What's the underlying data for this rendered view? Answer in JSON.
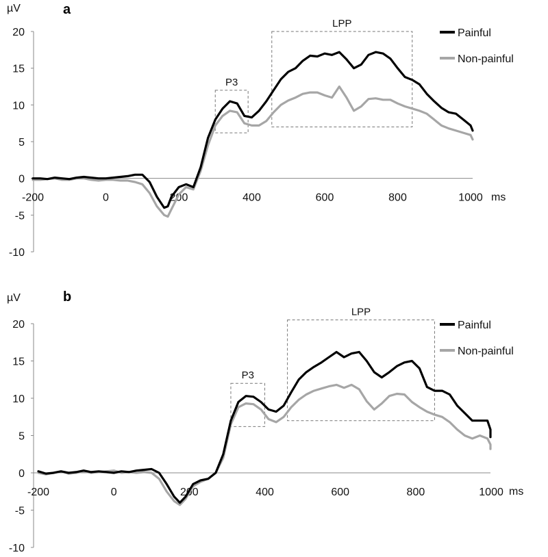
{
  "chart_data": [
    {
      "type": "line",
      "panel_label": "a",
      "ylabel": "µV",
      "xunit": "ms",
      "xlim": [
        -200,
        1000
      ],
      "ylim": [
        -10,
        20
      ],
      "x_ticks": [
        "-200",
        "0",
        "200",
        "400",
        "600",
        "800",
        "1000"
      ],
      "y_ticks": [
        "20",
        "15",
        "10",
        "5",
        "0",
        "-5",
        "-10"
      ],
      "grid": false,
      "legend_position": "top-right",
      "components": [
        {
          "label": "P3",
          "x_range": [
            300,
            390
          ],
          "y_range": [
            6.2,
            12
          ]
        },
        {
          "label": "LPP",
          "x_range": [
            455,
            840
          ],
          "y_range": [
            7,
            20
          ]
        }
      ],
      "series": [
        {
          "name": "Painful",
          "color": "#000000",
          "x": [
            -200,
            -180,
            -160,
            -140,
            -120,
            -100,
            -80,
            -60,
            -40,
            -20,
            0,
            20,
            40,
            60,
            80,
            100,
            120,
            140,
            160,
            170,
            180,
            200,
            220,
            240,
            260,
            280,
            300,
            320,
            340,
            360,
            380,
            400,
            420,
            440,
            460,
            480,
            500,
            520,
            540,
            560,
            580,
            600,
            620,
            640,
            660,
            680,
            700,
            720,
            740,
            760,
            780,
            800,
            820,
            840,
            860,
            880,
            900,
            920,
            940,
            960,
            980,
            1000,
            1020
          ],
          "values": [
            0,
            0,
            -0.1,
            0.1,
            0,
            -0.1,
            0.1,
            0.2,
            0.1,
            0,
            0,
            0.1,
            0.2,
            0.3,
            0.5,
            0.5,
            -0.5,
            -2.5,
            -4,
            -3.8,
            -2.5,
            -1.2,
            -0.8,
            -1.2,
            1.5,
            5.5,
            8,
            9.5,
            10.5,
            10.2,
            8.5,
            8.3,
            9.2,
            10.5,
            12,
            13.5,
            14.5,
            15,
            16,
            16.7,
            16.6,
            17,
            16.8,
            17.2,
            16.2,
            15,
            15.5,
            16.8,
            17.2,
            17,
            16.3,
            15,
            13.8,
            13.4,
            12.8,
            11.5,
            10.5,
            9.6,
            9,
            8.8,
            8,
            7.2,
            6.5
          ]
        },
        {
          "name": "Non-painful",
          "color": "#a6a6a6",
          "x": [
            -200,
            -180,
            -160,
            -140,
            -120,
            -100,
            -80,
            -60,
            -40,
            -20,
            0,
            20,
            40,
            60,
            80,
            100,
            120,
            140,
            160,
            170,
            180,
            200,
            220,
            240,
            260,
            280,
            300,
            320,
            340,
            360,
            380,
            400,
            420,
            440,
            460,
            480,
            500,
            520,
            540,
            560,
            580,
            600,
            620,
            640,
            660,
            680,
            700,
            720,
            740,
            760,
            780,
            800,
            820,
            840,
            860,
            880,
            900,
            920,
            940,
            960,
            980,
            1000,
            1020
          ],
          "values": [
            -0.2,
            -0.2,
            -0.1,
            0,
            -0.2,
            -0.2,
            0,
            0,
            -0.2,
            -0.3,
            -0.2,
            -0.2,
            -0.3,
            -0.3,
            -0.5,
            -0.8,
            -2,
            -3.8,
            -5,
            -5.2,
            -4.2,
            -2.2,
            -1.2,
            -1.5,
            1,
            4.5,
            7.2,
            8.5,
            9.2,
            9,
            7.5,
            7.2,
            7.2,
            7.8,
            9,
            10,
            10.6,
            11,
            11.5,
            11.7,
            11.7,
            11.3,
            11,
            12.5,
            11,
            9.2,
            9.8,
            10.8,
            10.9,
            10.7,
            10.7,
            10.2,
            9.8,
            9.5,
            9.2,
            8.8,
            8,
            7.2,
            6.8,
            6.5,
            6.2,
            5.9,
            5.3
          ]
        }
      ]
    },
    {
      "type": "line",
      "panel_label": "b",
      "ylabel": "µV",
      "xunit": "ms",
      "xlim": [
        -200,
        1000
      ],
      "ylim": [
        -10,
        20
      ],
      "x_ticks": [
        "-200",
        "0",
        "200",
        "400",
        "600",
        "800",
        "1000"
      ],
      "y_ticks": [
        "20",
        "15",
        "10",
        "5",
        "0",
        "-5",
        "-10"
      ],
      "grid": false,
      "legend_position": "top-right",
      "components": [
        {
          "label": "P3",
          "x_range": [
            310,
            400
          ],
          "y_range": [
            6.2,
            12
          ]
        },
        {
          "label": "LPP",
          "x_range": [
            460,
            850
          ],
          "y_range": [
            7,
            20.5
          ]
        }
      ],
      "series": [
        {
          "name": "Painful",
          "color": "#000000",
          "x": [
            -200,
            -180,
            -160,
            -140,
            -120,
            -100,
            -80,
            -60,
            -40,
            -20,
            0,
            20,
            40,
            60,
            80,
            100,
            120,
            140,
            160,
            175,
            190,
            210,
            230,
            250,
            270,
            290,
            310,
            330,
            350,
            370,
            390,
            410,
            430,
            450,
            470,
            490,
            510,
            530,
            550,
            570,
            590,
            610,
            630,
            650,
            670,
            690,
            710,
            730,
            750,
            770,
            790,
            810,
            830,
            850,
            870,
            890,
            910,
            930,
            950,
            970,
            990,
            1010,
            1020
          ],
          "values": [
            0.2,
            -0.1,
            0,
            0.2,
            0,
            0.1,
            0.3,
            0.1,
            0.2,
            0.1,
            0,
            0.2,
            0.1,
            0.3,
            0.4,
            0.5,
            0,
            -1.5,
            -3.2,
            -4,
            -3.2,
            -1.5,
            -1,
            -0.8,
            0,
            2.5,
            7,
            9.5,
            10.3,
            10.2,
            9.5,
            8.5,
            8.2,
            9,
            10.8,
            12.5,
            13.5,
            14.2,
            14.8,
            15.5,
            16.2,
            15.5,
            16,
            16.2,
            15,
            13.5,
            12.8,
            13.5,
            14.3,
            14.8,
            15,
            14,
            11.5,
            11,
            11,
            10.5,
            9,
            8,
            7,
            7,
            7,
            5.8,
            4.8
          ]
        },
        {
          "name": "Non-painful",
          "color": "#a6a6a6",
          "x": [
            -200,
            -180,
            -160,
            -140,
            -120,
            -100,
            -80,
            -60,
            -40,
            -20,
            0,
            20,
            40,
            60,
            80,
            100,
            120,
            140,
            160,
            175,
            190,
            210,
            230,
            250,
            270,
            290,
            310,
            330,
            350,
            370,
            390,
            410,
            430,
            450,
            470,
            490,
            510,
            530,
            550,
            570,
            590,
            610,
            630,
            650,
            670,
            690,
            710,
            730,
            750,
            770,
            790,
            810,
            830,
            850,
            870,
            890,
            910,
            930,
            950,
            970,
            990,
            1010,
            1020
          ],
          "values": [
            0,
            -0.2,
            0,
            0.2,
            -0.1,
            0,
            0.2,
            0,
            0.1,
            0.2,
            0.3,
            0,
            0.1,
            0,
            0.1,
            0,
            -0.8,
            -2.5,
            -3.8,
            -4.3,
            -3.5,
            -1.8,
            -1.2,
            -0.8,
            0,
            2,
            6.5,
            8.8,
            9.3,
            9.2,
            8.5,
            7.2,
            6.8,
            7.5,
            8.8,
            9.8,
            10.5,
            11,
            11.3,
            11.6,
            11.8,
            11.4,
            11.8,
            11.2,
            9.6,
            8.5,
            9.3,
            10.3,
            10.6,
            10.5,
            9.5,
            8.8,
            8.2,
            7.8,
            7.5,
            6.8,
            5.8,
            5,
            4.6,
            5,
            4.6,
            3.8,
            3.2
          ]
        }
      ]
    }
  ]
}
